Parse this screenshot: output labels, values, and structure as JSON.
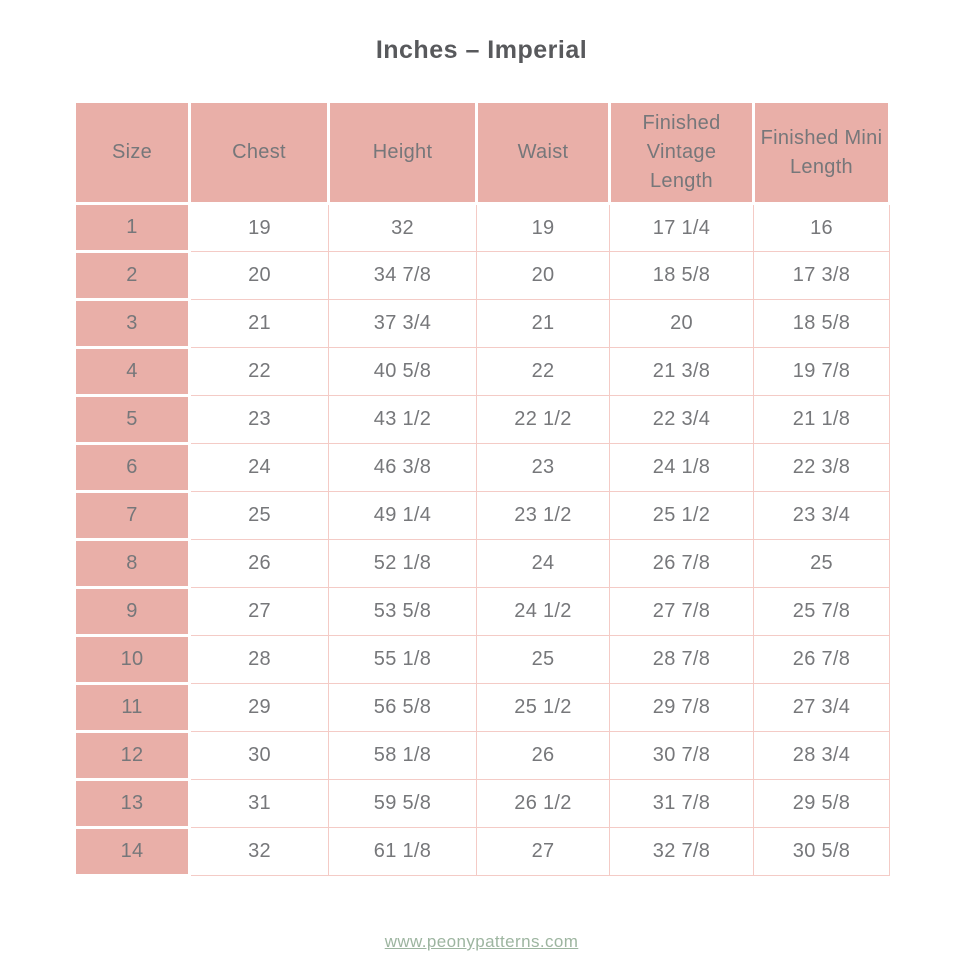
{
  "title": "Inches – Imperial",
  "table": {
    "headers": [
      "Size",
      "Chest",
      "Height",
      "Waist",
      "Finished Vintage Length",
      "Finished Mini Length"
    ],
    "rows": [
      [
        "1",
        "19",
        "32",
        "19",
        "17 1/4",
        "16"
      ],
      [
        "2",
        "20",
        "34 7/8",
        "20",
        "18 5/8",
        "17 3/8"
      ],
      [
        "3",
        "21",
        "37 3/4",
        "21",
        "20",
        "18 5/8"
      ],
      [
        "4",
        "22",
        "40 5/8",
        "22",
        "21 3/8",
        "19 7/8"
      ],
      [
        "5",
        "23",
        "43 1/2",
        "22 1/2",
        "22 3/4",
        "21 1/8"
      ],
      [
        "6",
        "24",
        "46 3/8",
        "23",
        "24 1/8",
        "22 3/8"
      ],
      [
        "7",
        "25",
        "49 1/4",
        "23 1/2",
        "25 1/2",
        "23 3/4"
      ],
      [
        "8",
        "26",
        "52 1/8",
        "24",
        "26 7/8",
        "25"
      ],
      [
        "9",
        "27",
        "53 5/8",
        "24 1/2",
        "27 7/8",
        "25 7/8"
      ],
      [
        "10",
        "28",
        "55 1/8",
        "25",
        "28 7/8",
        "26 7/8"
      ],
      [
        "11",
        "29",
        "56 5/8",
        "25 1/2",
        "29 7/8",
        "27 3/4"
      ],
      [
        "12",
        "30",
        "58 1/8",
        "26",
        "30 7/8",
        "28 3/4"
      ],
      [
        "13",
        "31",
        "59 5/8",
        "26 1/2",
        "31 7/8",
        "29 5/8"
      ],
      [
        "14",
        "32",
        "61 1/8",
        "27",
        "32 7/8",
        "30 5/8"
      ]
    ]
  },
  "footer": {
    "link": "www.peonypatterns.com"
  },
  "colors": {
    "pink_fill": "#e9afa8",
    "pink_grid": "#f4cbc6",
    "text_gray": "#76777a",
    "title_gray": "#58595c",
    "link_green": "#9db5a0"
  }
}
